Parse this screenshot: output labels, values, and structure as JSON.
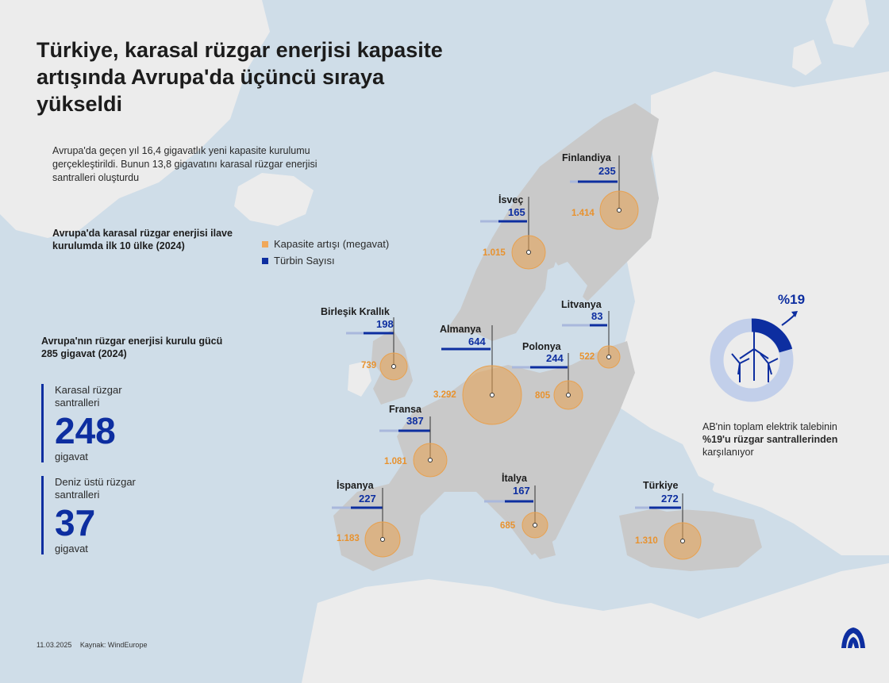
{
  "title": "Türkiye, karasal rüzgar enerjisi kapasite artışında Avrupa'da üçüncü sıraya yükseldi",
  "intro": "Avrupa'da geçen yıl 16,4 gigavatlık yeni kapasite kurulumu gerçekleştirildi. Bunun 13,8 gigavatını karasal rüzgar enerjisi santralleri oluşturdu",
  "top10_heading": "Avrupa'da karasal rüzgar enerjisi ilave kurulumda ilk 10 ülke (2024)",
  "legend": {
    "capacity": {
      "label": "Kapasite artışı (megavat)",
      "color": "#f0a85a"
    },
    "turbines": {
      "label": "Türbin Sayısı",
      "color": "#0d2ea0"
    }
  },
  "installed_heading": "Avrupa'nın rüzgar enerjisi kurulu gücü 285 gigavat (2024)",
  "onshore": {
    "label": "Karasal rüzgar santralleri",
    "value": "248",
    "unit": "gigavat"
  },
  "offshore": {
    "label": "Deniz üstü rüzgar santralleri",
    "value": "37",
    "unit": "gigavat"
  },
  "eu_share": {
    "percent_label": "%19",
    "percent": 19,
    "text_before": "AB'nin toplam elektrik talebinin ",
    "text_bold": "%19'u rüzgar santrallerinden",
    "text_after": " karşılanıyor"
  },
  "countries": [
    {
      "name": "Finlandiya",
      "turbines": "235",
      "capacity": "1.414",
      "turbines_n": 235,
      "capacity_mw": 1414
    },
    {
      "name": "İsveç",
      "turbines": "165",
      "capacity": "1.015",
      "turbines_n": 165,
      "capacity_mw": 1015
    },
    {
      "name": "Birleşik Krallık",
      "turbines": "198",
      "capacity": "739",
      "turbines_n": 198,
      "capacity_mw": 739
    },
    {
      "name": "Almanya",
      "turbines": "644",
      "capacity": "3.292",
      "turbines_n": 644,
      "capacity_mw": 3292
    },
    {
      "name": "Polonya",
      "turbines": "244",
      "capacity": "805",
      "turbines_n": 244,
      "capacity_mw": 805
    },
    {
      "name": "Litvanya",
      "turbines": "83",
      "capacity": "522",
      "turbines_n": 83,
      "capacity_mw": 522
    },
    {
      "name": "Fransa",
      "turbines": "387",
      "capacity": "1.081",
      "turbines_n": 387,
      "capacity_mw": 1081
    },
    {
      "name": "İspanya",
      "turbines": "227",
      "capacity": "1.183",
      "turbines_n": 227,
      "capacity_mw": 1183
    },
    {
      "name": "İtalya",
      "turbines": "167",
      "capacity": "685",
      "turbines_n": 167,
      "capacity_mw": 685
    },
    {
      "name": "Türkiye",
      "turbines": "272",
      "capacity": "1.310",
      "turbines_n": 272,
      "capacity_mw": 1310
    }
  ],
  "footer": {
    "date": "11.03.2025",
    "source": "Kaynak: WindEurope"
  },
  "logo_text": "AA"
}
